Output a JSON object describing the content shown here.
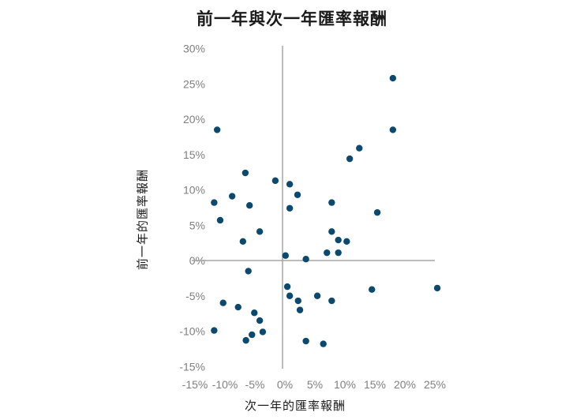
{
  "chart_data": {
    "type": "scatter",
    "title": "前一年與次一年匯率報酬",
    "xlabel": "次一年的匯率報酬",
    "ylabel": "前一年的匯率報酬",
    "xlim": [
      -15,
      25
    ],
    "ylim": [
      -15,
      30
    ],
    "xticks": [
      "-15%",
      "-10%",
      "-5%",
      "0%",
      "5%",
      "10%",
      "15%",
      "20%",
      "25%"
    ],
    "yticks": [
      "30%",
      "25%",
      "20%",
      "15%",
      "10%",
      "5%",
      "0%",
      "-5%",
      "-10%",
      "-15%"
    ],
    "grid": false,
    "legend": null,
    "marker_color": "#0b4a6e",
    "axis_color": "#a6a6a6",
    "series": [
      {
        "name": "匯率報酬",
        "points": [
          [
            -10.9,
            18.5
          ],
          [
            -6.2,
            12.4
          ],
          [
            -1.2,
            11.3
          ],
          [
            1.2,
            10.8
          ],
          [
            2.5,
            9.3
          ],
          [
            -8.4,
            9.1
          ],
          [
            -11.4,
            8.2
          ],
          [
            -5.5,
            7.8
          ],
          [
            1.2,
            7.4
          ],
          [
            8.2,
            8.2
          ],
          [
            -10.4,
            5.7
          ],
          [
            -3.8,
            4.1
          ],
          [
            -6.6,
            2.7
          ],
          [
            8.2,
            4.1
          ],
          [
            9.3,
            2.9
          ],
          [
            10.7,
            2.7
          ],
          [
            7.4,
            1.1
          ],
          [
            9.3,
            1.1
          ],
          [
            0.5,
            0.7
          ],
          [
            3.9,
            0.2
          ],
          [
            -5.7,
            -1.5
          ],
          [
            0.8,
            -3.7
          ],
          [
            1.2,
            -5.0
          ],
          [
            2.6,
            -5.7
          ],
          [
            2.9,
            -7.0
          ],
          [
            5.8,
            -5.0
          ],
          [
            8.2,
            -5.7
          ],
          [
            14.9,
            -4.1
          ],
          [
            25.8,
            -3.9
          ],
          [
            -9.9,
            -6.0
          ],
          [
            -7.4,
            -6.6
          ],
          [
            -4.7,
            -7.4
          ],
          [
            -3.8,
            -8.5
          ],
          [
            -11.4,
            -9.9
          ],
          [
            -3.3,
            -10.1
          ],
          [
            -5.1,
            -10.5
          ],
          [
            -6.1,
            -11.3
          ],
          [
            3.9,
            -11.4
          ],
          [
            6.8,
            -11.8
          ],
          [
            18.4,
            25.8
          ],
          [
            18.4,
            18.5
          ],
          [
            12.8,
            15.9
          ],
          [
            11.2,
            14.4
          ],
          [
            15.8,
            6.8
          ]
        ]
      }
    ]
  }
}
